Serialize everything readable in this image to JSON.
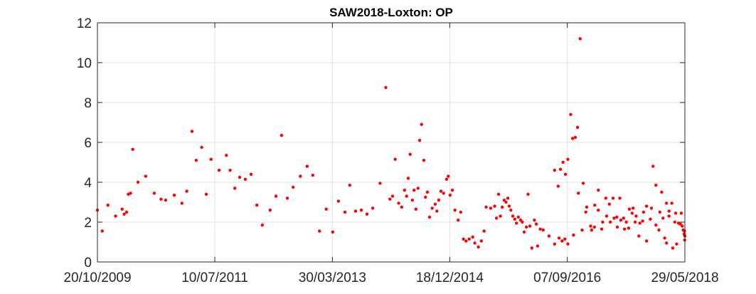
{
  "chart_data": {
    "type": "scatter",
    "title": "SAW2018-Loxton: OP",
    "xlabel": "",
    "ylabel": "",
    "x_axis": "date",
    "xlim": [
      "2009-10-20",
      "2018-05-29"
    ],
    "ylim": [
      0,
      12
    ],
    "x_ticks": [
      "2009-10-20",
      "2011-07-10",
      "2013-03-30",
      "2014-12-18",
      "2016-09-07",
      "2018-05-29"
    ],
    "x_tick_labels": [
      "20/10/2009",
      "10/07/2011",
      "30/03/2013",
      "18/12/2014",
      "07/09/2016",
      "29/05/2018"
    ],
    "y_ticks": [
      0,
      2,
      4,
      6,
      8,
      10,
      12
    ],
    "y_tick_labels": [
      "0",
      "2",
      "4",
      "6",
      "8",
      "10",
      "12"
    ],
    "grid": true,
    "marker_color": "#ff0000",
    "series": [
      {
        "points": [
          [
            "2009-10-20",
            2.6
          ],
          [
            "2009-11-15",
            1.55
          ],
          [
            "2009-12-15",
            2.85
          ],
          [
            "2010-01-25",
            2.3
          ],
          [
            "2010-03-01",
            2.65
          ],
          [
            "2010-03-12",
            2.4
          ],
          [
            "2010-03-25",
            2.5
          ],
          [
            "2010-04-03",
            3.4
          ],
          [
            "2010-04-15",
            3.45
          ],
          [
            "2010-04-27",
            5.65
          ],
          [
            "2010-05-25",
            4.0
          ],
          [
            "2010-07-05",
            4.3
          ],
          [
            "2010-08-20",
            3.45
          ],
          [
            "2010-09-25",
            3.15
          ],
          [
            "2010-10-20",
            3.1
          ],
          [
            "2010-12-05",
            3.35
          ],
          [
            "2011-01-15",
            2.95
          ],
          [
            "2011-02-10",
            3.55
          ],
          [
            "2011-03-10",
            6.55
          ],
          [
            "2011-04-01",
            5.1
          ],
          [
            "2011-05-01",
            5.75
          ],
          [
            "2011-05-25",
            3.4
          ],
          [
            "2011-06-20",
            5.15
          ],
          [
            "2011-08-02",
            4.6
          ],
          [
            "2011-09-10",
            5.35
          ],
          [
            "2011-09-30",
            4.6
          ],
          [
            "2011-10-25",
            3.7
          ],
          [
            "2011-11-20",
            4.25
          ],
          [
            "2011-12-20",
            4.15
          ],
          [
            "2012-01-20",
            4.4
          ],
          [
            "2012-02-20",
            2.85
          ],
          [
            "2012-03-20",
            1.85
          ],
          [
            "2012-05-01",
            2.6
          ],
          [
            "2012-06-01",
            3.3
          ],
          [
            "2012-07-01",
            6.35
          ],
          [
            "2012-08-01",
            3.2
          ],
          [
            "2012-09-01",
            3.75
          ],
          [
            "2012-10-10",
            4.3
          ],
          [
            "2012-11-15",
            4.8
          ],
          [
            "2012-12-15",
            4.35
          ],
          [
            "2013-01-20",
            1.55
          ],
          [
            "2013-02-25",
            2.65
          ],
          [
            "2013-04-01",
            1.5
          ],
          [
            "2013-05-01",
            3.05
          ],
          [
            "2013-06-05",
            2.5
          ],
          [
            "2013-07-01",
            3.85
          ],
          [
            "2013-08-01",
            2.55
          ],
          [
            "2013-09-01",
            2.6
          ],
          [
            "2013-10-01",
            2.4
          ],
          [
            "2013-11-01",
            2.7
          ],
          [
            "2013-12-10",
            3.95
          ],
          [
            "2014-01-10",
            8.75
          ],
          [
            "2014-02-01",
            3.15
          ],
          [
            "2014-02-15",
            3.3
          ],
          [
            "2014-03-01",
            5.15
          ],
          [
            "2014-03-20",
            2.95
          ],
          [
            "2014-04-05",
            2.75
          ],
          [
            "2014-04-20",
            3.6
          ],
          [
            "2014-05-01",
            3.3
          ],
          [
            "2014-05-10",
            4.2
          ],
          [
            "2014-05-20",
            5.4
          ],
          [
            "2014-06-01",
            3.1
          ],
          [
            "2014-06-10",
            3.6
          ],
          [
            "2014-06-20",
            2.65
          ],
          [
            "2014-07-01",
            3.7
          ],
          [
            "2014-07-10",
            6.1
          ],
          [
            "2014-07-20",
            6.9
          ],
          [
            "2014-08-01",
            5.1
          ],
          [
            "2014-08-10",
            3.25
          ],
          [
            "2014-08-20",
            3.5
          ],
          [
            "2014-09-01",
            2.25
          ],
          [
            "2014-09-15",
            2.7
          ],
          [
            "2014-10-01",
            2.9
          ],
          [
            "2014-10-10",
            2.55
          ],
          [
            "2014-10-20",
            3.1
          ],
          [
            "2014-11-01",
            3.55
          ],
          [
            "2014-11-15",
            3.45
          ],
          [
            "2014-12-01",
            4.15
          ],
          [
            "2014-12-10",
            4.3
          ],
          [
            "2014-12-20",
            3.35
          ],
          [
            "2015-01-01",
            3.6
          ],
          [
            "2015-01-15",
            2.6
          ],
          [
            "2015-02-01",
            2.1
          ],
          [
            "2015-02-15",
            2.5
          ],
          [
            "2015-03-01",
            1.15
          ],
          [
            "2015-03-15",
            1.05
          ],
          [
            "2015-04-01",
            1.15
          ],
          [
            "2015-04-20",
            1.25
          ],
          [
            "2015-05-01",
            0.95
          ],
          [
            "2015-05-20",
            0.75
          ],
          [
            "2015-06-05",
            1.05
          ],
          [
            "2015-06-20",
            1.55
          ],
          [
            "2015-07-01",
            2.75
          ],
          [
            "2015-07-25",
            2.7
          ],
          [
            "2015-08-15",
            2.8
          ],
          [
            "2015-08-25",
            2.2
          ],
          [
            "2015-09-05",
            3.4
          ],
          [
            "2015-09-15",
            2.3
          ],
          [
            "2015-09-25",
            2.75
          ],
          [
            "2015-10-05",
            3.1
          ],
          [
            "2015-10-15",
            3.0
          ],
          [
            "2015-10-25",
            3.2
          ],
          [
            "2015-11-01",
            2.8
          ],
          [
            "2015-11-10",
            2.6
          ],
          [
            "2015-11-20",
            2.3
          ],
          [
            "2015-12-01",
            2.15
          ],
          [
            "2015-12-10",
            1.95
          ],
          [
            "2015-12-20",
            2.25
          ],
          [
            "2016-01-01",
            2.1
          ],
          [
            "2016-01-10",
            2.0
          ],
          [
            "2016-01-20",
            1.5
          ],
          [
            "2016-02-01",
            1.75
          ],
          [
            "2016-02-10",
            3.4
          ],
          [
            "2016-02-20",
            1.8
          ],
          [
            "2016-03-01",
            0.7
          ],
          [
            "2016-03-15",
            2.1
          ],
          [
            "2016-03-25",
            1.9
          ],
          [
            "2016-04-01",
            0.8
          ],
          [
            "2016-04-15",
            1.65
          ],
          [
            "2016-05-01",
            1.6
          ],
          [
            "2016-06-01",
            1.3
          ],
          [
            "2016-07-01",
            0.9
          ],
          [
            "2016-07-25",
            1.2
          ],
          [
            "2016-08-10",
            1.05
          ],
          [
            "2016-08-25",
            1.15
          ],
          [
            "2016-09-10",
            0.9
          ],
          [
            "2016-10-10",
            1.35
          ],
          [
            "2016-11-05",
            3.45
          ],
          [
            "2016-11-25",
            1.6
          ],
          [
            "2016-12-15",
            2.5
          ],
          [
            "2017-01-15",
            1.6
          ],
          [
            "2017-02-01",
            2.85
          ],
          [
            "2017-02-20",
            2.6
          ],
          [
            "2017-03-15",
            2.0
          ],
          [
            "2017-04-05",
            2.3
          ],
          [
            "2017-04-25",
            2.0
          ],
          [
            "2017-05-15",
            2.2
          ],
          [
            "2017-06-01",
            1.75
          ],
          [
            "2017-06-20",
            2.1
          ],
          [
            "2017-07-10",
            1.65
          ],
          [
            "2017-08-01",
            1.7
          ],
          [
            "2017-08-20",
            2.45
          ],
          [
            "2017-09-05",
            2.0
          ],
          [
            "2017-09-25",
            1.3
          ],
          [
            "2017-10-15",
            2.05
          ],
          [
            "2017-11-05",
            1.05
          ],
          [
            "2017-12-01",
            2.7
          ],
          [
            "2017-12-25",
            1.85
          ],
          [
            "2018-01-10",
            1.6
          ],
          [
            "2018-01-25",
            3.5
          ],
          [
            "2018-02-10",
            1.2
          ],
          [
            "2018-02-20",
            0.95
          ],
          [
            "2018-03-05",
            2.3
          ],
          [
            "2018-03-25",
            0.7
          ],
          [
            "2018-04-10",
            2.45
          ],
          [
            "2018-05-10",
            2.45
          ]
        ]
      },
      {
        "points": [
          [
            "2016-07-01",
            4.6
          ],
          [
            "2016-07-20",
            3.8
          ],
          [
            "2016-08-01",
            4.65
          ],
          [
            "2016-08-15",
            5.0
          ],
          [
            "2016-08-28",
            4.4
          ],
          [
            "2016-09-10",
            5.15
          ],
          [
            "2016-09-25",
            7.4
          ],
          [
            "2016-10-05",
            6.2
          ],
          [
            "2016-10-20",
            6.25
          ],
          [
            "2016-11-01",
            6.75
          ],
          [
            "2016-11-15",
            11.2
          ],
          [
            "2016-12-01",
            3.95
          ],
          [
            "2016-12-20",
            2.75
          ],
          [
            "2017-01-10",
            1.8
          ],
          [
            "2017-01-30",
            1.75
          ],
          [
            "2017-02-20",
            3.6
          ],
          [
            "2017-03-10",
            1.65
          ],
          [
            "2017-04-01",
            3.2
          ],
          [
            "2017-04-20",
            2.9
          ],
          [
            "2017-05-10",
            3.2
          ],
          [
            "2017-05-30",
            2.25
          ],
          [
            "2017-06-15",
            3.2
          ],
          [
            "2017-07-05",
            2.2
          ],
          [
            "2017-07-20",
            2.0
          ],
          [
            "2017-08-05",
            2.65
          ],
          [
            "2017-08-25",
            2.7
          ],
          [
            "2017-09-10",
            2.3
          ],
          [
            "2017-09-30",
            1.95
          ],
          [
            "2017-10-20",
            2.5
          ],
          [
            "2017-11-05",
            2.8
          ],
          [
            "2017-11-25",
            2.15
          ],
          [
            "2017-12-10",
            4.8
          ],
          [
            "2017-12-25",
            3.85
          ],
          [
            "2018-01-15",
            2.5
          ],
          [
            "2018-02-01",
            2.2
          ],
          [
            "2018-02-20",
            2.95
          ],
          [
            "2018-03-05",
            2.55
          ],
          [
            "2018-03-20",
            2.95
          ],
          [
            "2018-04-05",
            2.0
          ],
          [
            "2018-04-15",
            0.9
          ],
          [
            "2018-04-25",
            1.95
          ],
          [
            "2018-05-05",
            1.9
          ],
          [
            "2018-05-15",
            1.8
          ],
          [
            "2018-05-20",
            1.6
          ],
          [
            "2018-05-25",
            1.4
          ],
          [
            "2018-05-27",
            1.55
          ],
          [
            "2018-05-28",
            1.1
          ],
          [
            "2018-05-29",
            1.3
          ]
        ]
      }
    ]
  }
}
